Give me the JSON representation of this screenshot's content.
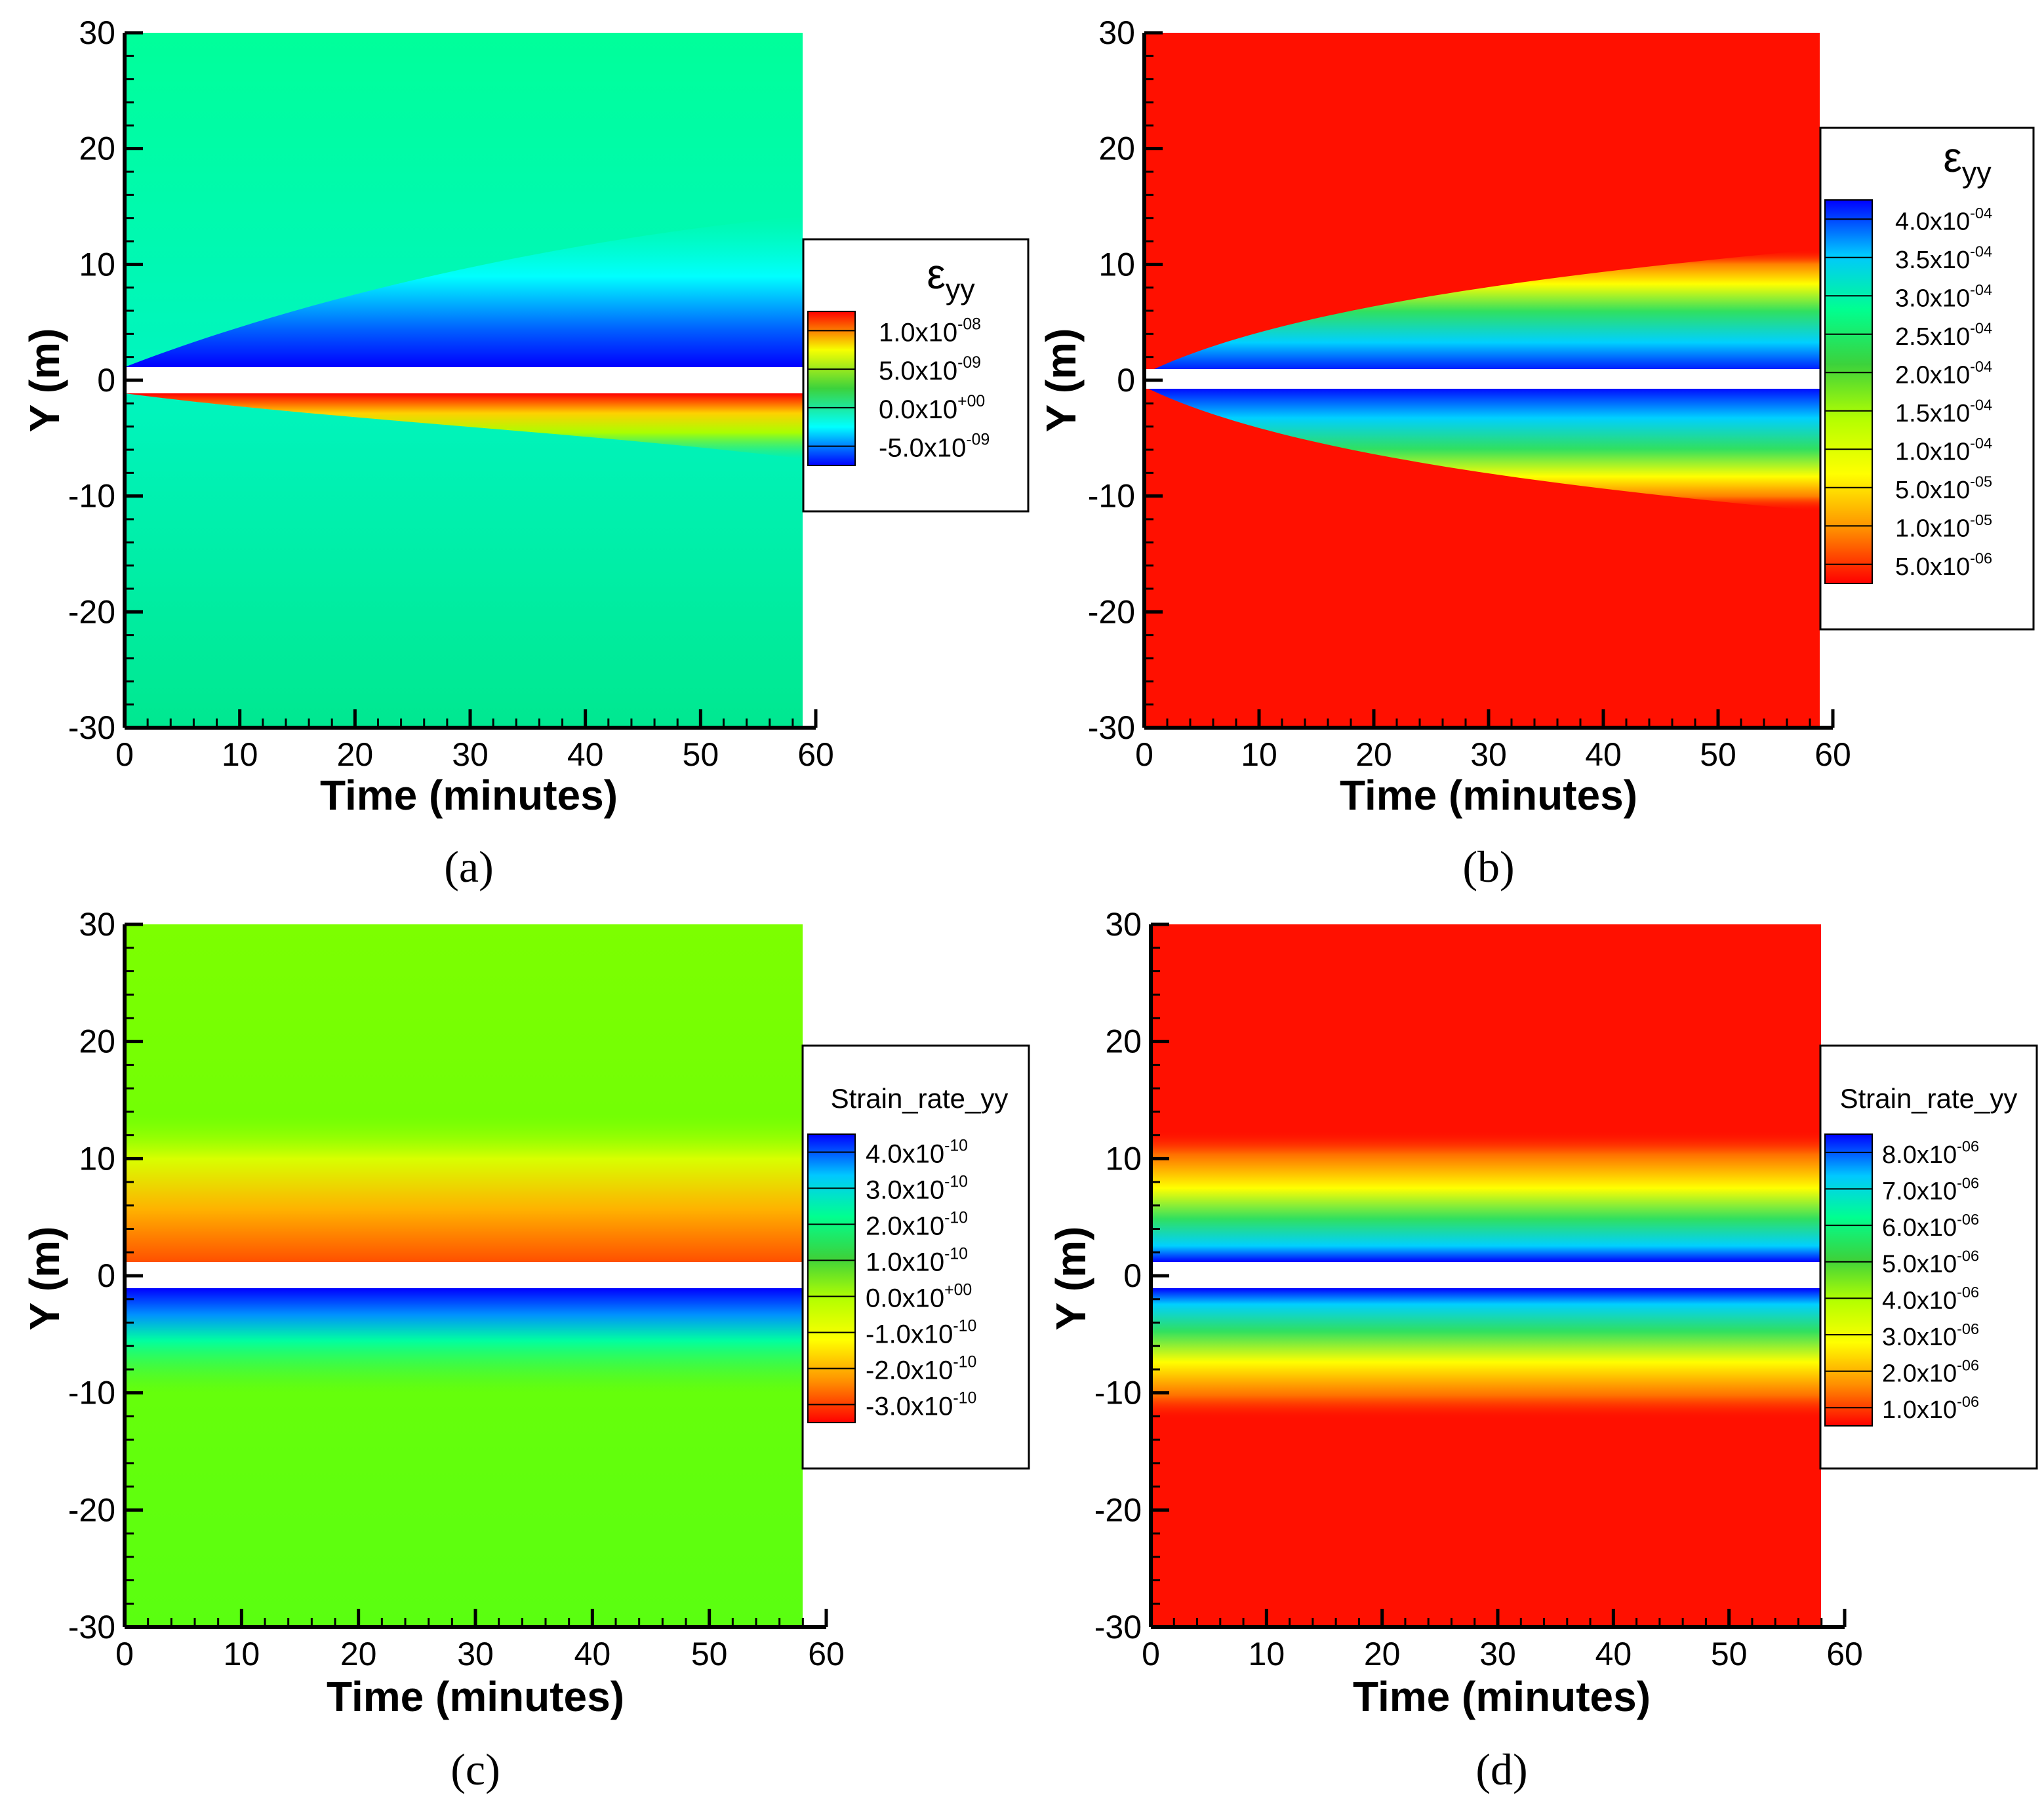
{
  "chart_data": [
    {
      "type": "heatmap",
      "panel_label": "(a)",
      "title": "",
      "xlabel": "Time (minutes)",
      "ylabel": "Y (m)",
      "x": [
        0,
        60
      ],
      "y": [
        -30,
        30
      ],
      "xlim": [
        0,
        60
      ],
      "ylim": [
        -30,
        30
      ],
      "xticks": [
        0,
        10,
        20,
        30,
        40,
        50,
        60
      ],
      "yticks": [
        30,
        20,
        10,
        0,
        -10,
        -20,
        -30
      ],
      "data_extent_x": [
        0,
        59
      ],
      "gap_y": [
        -1,
        1
      ],
      "legend": {
        "title": "ε",
        "title_sub": "yy",
        "levels": [
          {
            "mant": "1.0",
            "exp": "-08"
          },
          {
            "mant": "5.0",
            "exp": "-09"
          },
          {
            "mant": "0.0",
            "exp": "+00"
          },
          {
            "mant": "-5.0",
            "exp": "-09"
          }
        ],
        "colors_top_to_bottom": [
          "#ff0000",
          "#f7ff00",
          "#3cd23c",
          "#00ffff",
          "#0000ff"
        ]
      },
      "field": {
        "upper": "blue band near Y=0 broadening with time, cyan fading to green above",
        "lower": "red band near Y=0 broadening with time, yellow/green below"
      }
    },
    {
      "type": "heatmap",
      "panel_label": "(b)",
      "title": "",
      "xlabel": "Time (minutes)",
      "ylabel": "Y (m)",
      "x": [
        0,
        60
      ],
      "y": [
        -30,
        30
      ],
      "xlim": [
        0,
        60
      ],
      "ylim": [
        -30,
        30
      ],
      "xticks": [
        0,
        10,
        20,
        30,
        40,
        50,
        60
      ],
      "yticks": [
        30,
        20,
        10,
        0,
        -10,
        -20,
        -30
      ],
      "data_extent_x": [
        0,
        59
      ],
      "gap_y": [
        -1,
        1
      ],
      "legend": {
        "title": "ε",
        "title_sub": "yy",
        "levels": [
          {
            "mant": "4.0",
            "exp": "-04"
          },
          {
            "mant": "3.5",
            "exp": "-04"
          },
          {
            "mant": "3.0",
            "exp": "-04"
          },
          {
            "mant": "2.5",
            "exp": "-04"
          },
          {
            "mant": "2.0",
            "exp": "-04"
          },
          {
            "mant": "1.5",
            "exp": "-04"
          },
          {
            "mant": "1.0",
            "exp": "-04"
          },
          {
            "mant": "5.0",
            "exp": "-05"
          },
          {
            "mant": "1.0",
            "exp": "-05"
          },
          {
            "mant": "5.0",
            "exp": "-06"
          }
        ],
        "colors_top_to_bottom": [
          "#0000ff",
          "#00c8ff",
          "#00ff90",
          "#3cd23c",
          "#b4ff00",
          "#ffff00",
          "#ff9000",
          "#ff0000"
        ]
      },
      "field": {
        "upper": "symmetric blue/green/yellow wedge about Y=0 on red background",
        "lower": "mirror of upper"
      }
    },
    {
      "type": "heatmap",
      "panel_label": "(c)",
      "title": "",
      "xlabel": "Time (minutes)",
      "ylabel": "Y (m)",
      "x": [
        0,
        60
      ],
      "y": [
        -30,
        30
      ],
      "xlim": [
        0,
        60
      ],
      "ylim": [
        -30,
        30
      ],
      "xticks": [
        0,
        10,
        20,
        30,
        40,
        50,
        60
      ],
      "yticks": [
        30,
        20,
        10,
        0,
        -10,
        -20,
        -30
      ],
      "data_extent_x": [
        0,
        58
      ],
      "gap_y": [
        -1,
        1
      ],
      "legend": {
        "title": "Strain_rate_yy",
        "title_sub": "",
        "levels": [
          {
            "mant": "4.0",
            "exp": "-10"
          },
          {
            "mant": "3.0",
            "exp": "-10"
          },
          {
            "mant": "2.0",
            "exp": "-10"
          },
          {
            "mant": "1.0",
            "exp": "-10"
          },
          {
            "mant": "0.0",
            "exp": "+00"
          },
          {
            "mant": "-1.0",
            "exp": "-10"
          },
          {
            "mant": "-2.0",
            "exp": "-10"
          },
          {
            "mant": "-3.0",
            "exp": "-10"
          }
        ],
        "colors_top_to_bottom": [
          "#0000ff",
          "#00c8ff",
          "#00ff90",
          "#3cd23c",
          "#b4ff00",
          "#ffff00",
          "#ff9000",
          "#ff0000"
        ]
      },
      "field": {
        "upper": "yellow-green background with orange/red band just above Y=0",
        "lower": "blue band just below Y=0 fading to green"
      }
    },
    {
      "type": "heatmap",
      "panel_label": "(d)",
      "title": "",
      "xlabel": "Time (minutes)",
      "ylabel": "Y (m)",
      "x": [
        0,
        60
      ],
      "y": [
        -30,
        30
      ],
      "xlim": [
        0,
        60
      ],
      "ylim": [
        -30,
        30
      ],
      "xticks": [
        0,
        10,
        20,
        30,
        40,
        50,
        60
      ],
      "yticks": [
        30,
        20,
        10,
        0,
        -10,
        -20,
        -30
      ],
      "data_extent_x": [
        0,
        58
      ],
      "gap_y": [
        -1,
        1
      ],
      "legend": {
        "title": "Strain_rate_yy",
        "title_sub": "",
        "levels": [
          {
            "mant": "8.0",
            "exp": "-06"
          },
          {
            "mant": "7.0",
            "exp": "-06"
          },
          {
            "mant": "6.0",
            "exp": "-06"
          },
          {
            "mant": "5.0",
            "exp": "-06"
          },
          {
            "mant": "4.0",
            "exp": "-06"
          },
          {
            "mant": "3.0",
            "exp": "-06"
          },
          {
            "mant": "2.0",
            "exp": "-06"
          },
          {
            "mant": "1.0",
            "exp": "-06"
          }
        ],
        "colors_top_to_bottom": [
          "#0000ff",
          "#00c8ff",
          "#00ff90",
          "#3cd23c",
          "#b4ff00",
          "#ffff00",
          "#ff9000",
          "#ff0000"
        ]
      },
      "field": {
        "upper": "symmetric horizontal blue/green/yellow bands about Y=0 on red",
        "lower": "mirror of upper"
      }
    }
  ]
}
